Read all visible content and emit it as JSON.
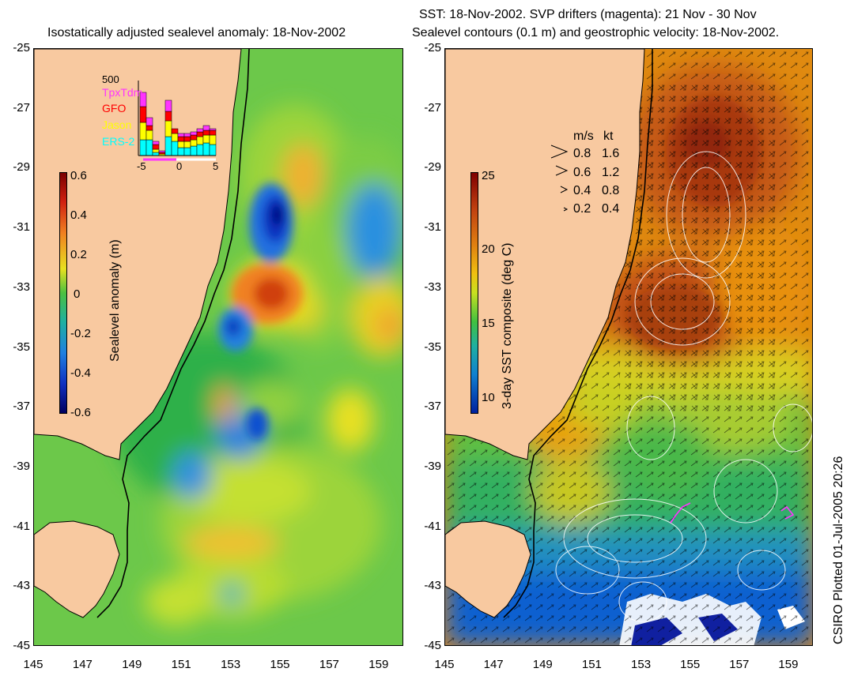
{
  "left_panel": {
    "title": "Isostatically adjusted sealevel anomaly: 18-Nov-2002",
    "colorbar": {
      "label": "Sealevel anomaly (m)",
      "ticks": [
        "0.6",
        "0.4",
        "0.2",
        "0",
        "-0.2",
        "-0.4",
        "-0.6"
      ]
    },
    "inset": {
      "count_label": "500",
      "missions": [
        "TpxTdm",
        "GFO",
        "Jason",
        "ERS-2"
      ],
      "mission_colors": [
        "#ff33ff",
        "#ff0000",
        "#ffff00",
        "#00ffff"
      ],
      "x_ticks": [
        "-5",
        "0",
        "5"
      ]
    }
  },
  "right_panel": {
    "title_line1": "SST: 18-Nov-2002. SVP drifters (magenta): 21 Nov - 30 Nov",
    "title_line2": "Sealevel contours (0.1 m) and geostrophic velocity: 18-Nov-2002.",
    "colorbar": {
      "label": "3-day SST composite (deg C)",
      "ticks": [
        "25",
        "20",
        "15",
        "10"
      ]
    },
    "velocity_key": {
      "header_ms": "m/s",
      "header_kt": "kt",
      "rows": [
        {
          "ms": "0.8",
          "kt": "1.6"
        },
        {
          "ms": "0.6",
          "kt": "1.2"
        },
        {
          "ms": "0.4",
          "kt": "0.8"
        },
        {
          "ms": "0.2",
          "kt": "0.4"
        }
      ]
    }
  },
  "axes": {
    "y_ticks": [
      "-25",
      "-27",
      "-29",
      "-31",
      "-33",
      "-35",
      "-37",
      "-39",
      "-41",
      "-43",
      "-45"
    ],
    "x_ticks": [
      "145",
      "147",
      "149",
      "151",
      "153",
      "155",
      "157",
      "159"
    ]
  },
  "footer": {
    "plotted": "CSIRO Plotted 01-Jul-2005 20:26"
  },
  "colors": {
    "land": "#f8c9a0",
    "coast": "#000000"
  }
}
